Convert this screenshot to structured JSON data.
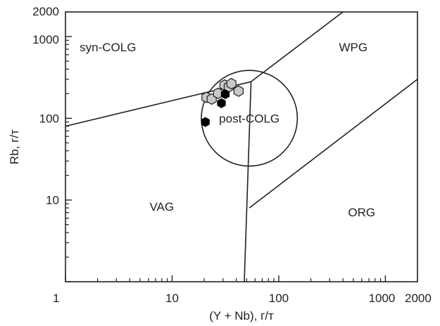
{
  "chart_data": {
    "type": "scatter",
    "title": "",
    "xlabel": "(Y + Nb), г/т",
    "ylabel": "Rb, г/т",
    "xscale": "log",
    "yscale": "log",
    "xlim": [
      1,
      2000
    ],
    "ylim": [
      1,
      2000
    ],
    "x_ticks": [
      {
        "value": 1,
        "label": "1"
      },
      {
        "value": 10,
        "label": "10"
      },
      {
        "value": 100,
        "label": "100"
      },
      {
        "value": 1000,
        "label": "1000"
      },
      {
        "value": 2000,
        "label": "2000"
      }
    ],
    "y_ticks": [
      {
        "value": 10,
        "label": "10"
      },
      {
        "value": 100,
        "label": "100"
      },
      {
        "value": 1000,
        "label": "1000"
      },
      {
        "value": 2000,
        "label": "2000"
      }
    ],
    "fields": [
      {
        "label": "syn-COLG",
        "x": 2.5,
        "y": 740
      },
      {
        "label": "WPG",
        "x": 500,
        "y": 740
      },
      {
        "label": "post-COLG",
        "x": 53,
        "y": 100
      },
      {
        "label": "VAG",
        "x": 8,
        "y": 8.3
      },
      {
        "label": "ORG",
        "x": 600,
        "y": 7.1
      }
    ],
    "boundaries": [
      {
        "name": "vag-syn-colg",
        "points": [
          [
            1,
            80
          ],
          [
            55,
            280
          ]
        ]
      },
      {
        "name": "syn-colg-wpg",
        "points": [
          [
            55,
            280
          ],
          [
            400,
            2000
          ]
        ]
      },
      {
        "name": "vag-orgwpg",
        "points": [
          [
            55,
            280
          ],
          [
            47.5,
            1
          ]
        ]
      },
      {
        "name": "wpg-org",
        "points": [
          [
            53,
            8
          ],
          [
            2000,
            300
          ]
        ]
      }
    ],
    "ellipse": {
      "label": "post-COLG",
      "cx": 53,
      "cy": 100,
      "x_half_decades": 0.45,
      "y_half_decades": 0.585
    },
    "series": [
      {
        "marker": "filled",
        "color": "#000000",
        "points": [
          [
            20.5,
            90
          ],
          [
            29,
            153
          ],
          [
            31.5,
            197
          ]
        ]
      },
      {
        "marker": "open-grey",
        "color": "#c8c8c8",
        "points": [
          [
            21,
            180
          ],
          [
            23.5,
            172
          ],
          [
            27,
            202
          ],
          [
            31,
            255
          ],
          [
            34,
            242
          ],
          [
            36,
            265
          ],
          [
            42,
            215
          ]
        ]
      }
    ],
    "colors": {
      "line": "#231f20",
      "filled": "#000000",
      "grey": "#c8c8c8"
    }
  }
}
